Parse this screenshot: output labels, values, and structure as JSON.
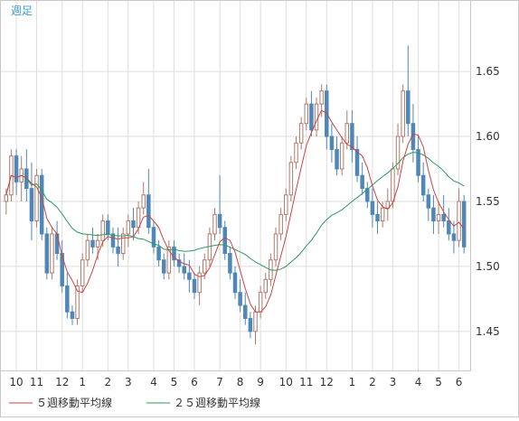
{
  "header": {
    "period_label": "週足"
  },
  "chart_data": {
    "type": "candlestick",
    "title": "",
    "ylim": [
      1.42,
      1.705
    ],
    "y_ticks": [
      1.45,
      1.5,
      1.55,
      1.6,
      1.65
    ],
    "y_tick_labels": [
      "1.45",
      "1.50",
      "1.55",
      "1.60",
      "1.65"
    ],
    "x_tick_labels": [
      "10",
      "11",
      "12",
      "1",
      "2",
      "3",
      "4",
      "5",
      "6",
      "7",
      "8",
      "9",
      "10",
      "11",
      "12",
      "1",
      "2",
      "3",
      "4",
      "5",
      "6"
    ],
    "x_tick_index": [
      2,
      6,
      11,
      15,
      20,
      24,
      29,
      33,
      37,
      42,
      46,
      50,
      55,
      59,
      63,
      68,
      72,
      76,
      81,
      85,
      89
    ],
    "grid": true,
    "legend_position": "bottom-left",
    "colors": {
      "up": "#ffffff",
      "up_border": "#b07a6a",
      "down": "#4f87b8",
      "down_border": "#4f87b8",
      "ma5": "#cc4444",
      "ma25": "#2e9a5e",
      "grid": "#dddddd"
    },
    "series": [
      {
        "name": "５週移動平均線",
        "type": "line",
        "period": 5
      },
      {
        "name": "２５週移動平均線",
        "type": "line",
        "period": 25
      }
    ],
    "ohlc": [
      [
        1.55,
        1.56,
        1.54,
        1.555
      ],
      [
        1.555,
        1.59,
        1.55,
        1.585
      ],
      [
        1.585,
        1.59,
        1.555,
        1.565
      ],
      [
        1.565,
        1.585,
        1.55,
        1.575
      ],
      [
        1.575,
        1.59,
        1.55,
        1.56
      ],
      [
        1.56,
        1.58,
        1.52,
        1.535
      ],
      [
        1.535,
        1.575,
        1.53,
        1.57
      ],
      [
        1.57,
        1.575,
        1.52,
        1.525
      ],
      [
        1.525,
        1.53,
        1.49,
        1.495
      ],
      [
        1.495,
        1.53,
        1.49,
        1.525
      ],
      [
        1.525,
        1.535,
        1.505,
        1.51
      ],
      [
        1.51,
        1.52,
        1.48,
        1.485
      ],
      [
        1.485,
        1.495,
        1.46,
        1.465
      ],
      [
        1.465,
        1.47,
        1.455,
        1.46
      ],
      [
        1.46,
        1.49,
        1.455,
        1.485
      ],
      [
        1.485,
        1.51,
        1.48,
        1.505
      ],
      [
        1.505,
        1.525,
        1.5,
        1.52
      ],
      [
        1.52,
        1.53,
        1.51,
        1.515
      ],
      [
        1.515,
        1.525,
        1.505,
        1.52
      ],
      [
        1.52,
        1.54,
        1.515,
        1.535
      ],
      [
        1.535,
        1.54,
        1.52,
        1.525
      ],
      [
        1.525,
        1.53,
        1.51,
        1.515
      ],
      [
        1.515,
        1.53,
        1.5,
        1.51
      ],
      [
        1.51,
        1.53,
        1.505,
        1.525
      ],
      [
        1.525,
        1.54,
        1.515,
        1.535
      ],
      [
        1.535,
        1.545,
        1.52,
        1.53
      ],
      [
        1.53,
        1.55,
        1.525,
        1.545
      ],
      [
        1.545,
        1.565,
        1.54,
        1.555
      ],
      [
        1.555,
        1.575,
        1.525,
        1.53
      ],
      [
        1.53,
        1.535,
        1.51,
        1.515
      ],
      [
        1.515,
        1.52,
        1.5,
        1.505
      ],
      [
        1.505,
        1.51,
        1.49,
        1.495
      ],
      [
        1.495,
        1.52,
        1.49,
        1.515
      ],
      [
        1.515,
        1.52,
        1.5,
        1.505
      ],
      [
        1.505,
        1.51,
        1.495,
        1.5
      ],
      [
        1.5,
        1.51,
        1.49,
        1.495
      ],
      [
        1.495,
        1.505,
        1.48,
        1.49
      ],
      [
        1.49,
        1.495,
        1.475,
        1.48
      ],
      [
        1.48,
        1.5,
        1.47,
        1.495
      ],
      [
        1.495,
        1.51,
        1.49,
        1.505
      ],
      [
        1.505,
        1.53,
        1.5,
        1.525
      ],
      [
        1.525,
        1.545,
        1.52,
        1.54
      ],
      [
        1.54,
        1.57,
        1.525,
        1.53
      ],
      [
        1.53,
        1.535,
        1.505,
        1.51
      ],
      [
        1.51,
        1.515,
        1.49,
        1.495
      ],
      [
        1.495,
        1.5,
        1.475,
        1.48
      ],
      [
        1.48,
        1.49,
        1.465,
        1.47
      ],
      [
        1.47,
        1.48,
        1.455,
        1.46
      ],
      [
        1.46,
        1.465,
        1.445,
        1.45
      ],
      [
        1.45,
        1.47,
        1.44,
        1.465
      ],
      [
        1.465,
        1.485,
        1.46,
        1.48
      ],
      [
        1.48,
        1.495,
        1.475,
        1.49
      ],
      [
        1.49,
        1.51,
        1.485,
        1.505
      ],
      [
        1.505,
        1.53,
        1.5,
        1.525
      ],
      [
        1.525,
        1.545,
        1.52,
        1.54
      ],
      [
        1.54,
        1.56,
        1.535,
        1.555
      ],
      [
        1.555,
        1.585,
        1.55,
        1.58
      ],
      [
        1.58,
        1.6,
        1.575,
        1.595
      ],
      [
        1.595,
        1.615,
        1.59,
        1.61
      ],
      [
        1.61,
        1.63,
        1.605,
        1.625
      ],
      [
        1.625,
        1.635,
        1.6,
        1.605
      ],
      [
        1.605,
        1.63,
        1.6,
        1.625
      ],
      [
        1.625,
        1.64,
        1.615,
        1.635
      ],
      [
        1.635,
        1.64,
        1.59,
        1.6
      ],
      [
        1.6,
        1.61,
        1.58,
        1.59
      ],
      [
        1.59,
        1.6,
        1.57,
        1.575
      ],
      [
        1.575,
        1.6,
        1.57,
        1.595
      ],
      [
        1.595,
        1.62,
        1.59,
        1.61
      ],
      [
        1.61,
        1.62,
        1.58,
        1.59
      ],
      [
        1.59,
        1.6,
        1.565,
        1.57
      ],
      [
        1.57,
        1.58,
        1.555,
        1.56
      ],
      [
        1.56,
        1.565,
        1.545,
        1.55
      ],
      [
        1.55,
        1.56,
        1.53,
        1.54
      ],
      [
        1.54,
        1.55,
        1.525,
        1.535
      ],
      [
        1.535,
        1.55,
        1.53,
        1.545
      ],
      [
        1.545,
        1.56,
        1.535,
        1.55
      ],
      [
        1.55,
        1.58,
        1.545,
        1.575
      ],
      [
        1.575,
        1.61,
        1.57,
        1.6
      ],
      [
        1.6,
        1.64,
        1.595,
        1.635
      ],
      [
        1.635,
        1.67,
        1.6,
        1.61
      ],
      [
        1.61,
        1.625,
        1.58,
        1.59
      ],
      [
        1.59,
        1.6,
        1.565,
        1.57
      ],
      [
        1.57,
        1.58,
        1.55,
        1.555
      ],
      [
        1.555,
        1.56,
        1.535,
        1.545
      ],
      [
        1.545,
        1.555,
        1.525,
        1.535
      ],
      [
        1.535,
        1.55,
        1.525,
        1.54
      ],
      [
        1.54,
        1.555,
        1.53,
        1.535
      ],
      [
        1.535,
        1.545,
        1.52,
        1.525
      ],
      [
        1.525,
        1.535,
        1.51,
        1.52
      ],
      [
        1.52,
        1.56,
        1.515,
        1.55
      ],
      [
        1.55,
        1.555,
        1.51,
        1.515
      ]
    ]
  }
}
